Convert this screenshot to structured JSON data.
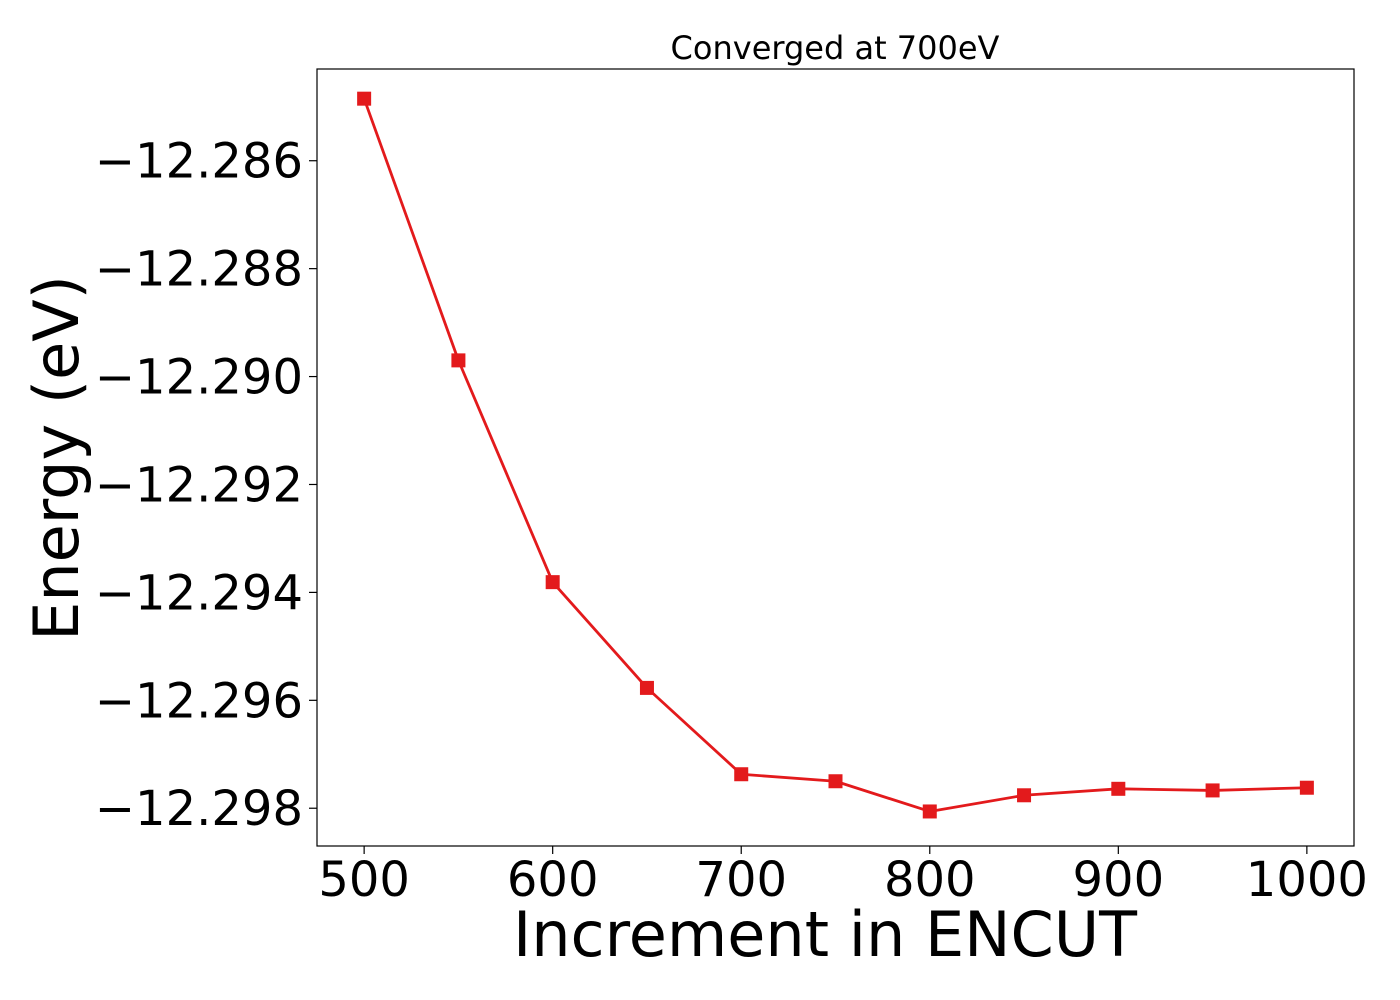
{
  "chart_data": {
    "type": "line",
    "title": "Converged at 700eV",
    "xlabel": "Increment in ENCUT",
    "ylabel": "Energy (eV)",
    "xlim": [
      475,
      1025
    ],
    "ylim": [
      -12.2987,
      -12.2843
    ],
    "xticks": [
      500,
      600,
      700,
      800,
      900,
      1000
    ],
    "yticks": [
      -12.286,
      -12.288,
      -12.29,
      -12.292,
      -12.294,
      -12.296,
      -12.298
    ],
    "ytick_labels": [
      "−12.286",
      "−12.288",
      "−12.290",
      "−12.292",
      "−12.294",
      "−12.296",
      "−12.298"
    ],
    "grid": false,
    "legend": false,
    "series": [
      {
        "color": "#e31a1c",
        "marker": "square",
        "x": [
          500,
          550,
          600,
          650,
          700,
          750,
          800,
          850,
          900,
          950,
          1000
        ],
        "y": [
          -12.28485,
          -12.2897,
          -12.29381,
          -12.29577,
          -12.29737,
          -12.2975,
          -12.29806,
          -12.29776,
          -12.29764,
          -12.29767,
          -12.29762
        ]
      }
    ]
  }
}
